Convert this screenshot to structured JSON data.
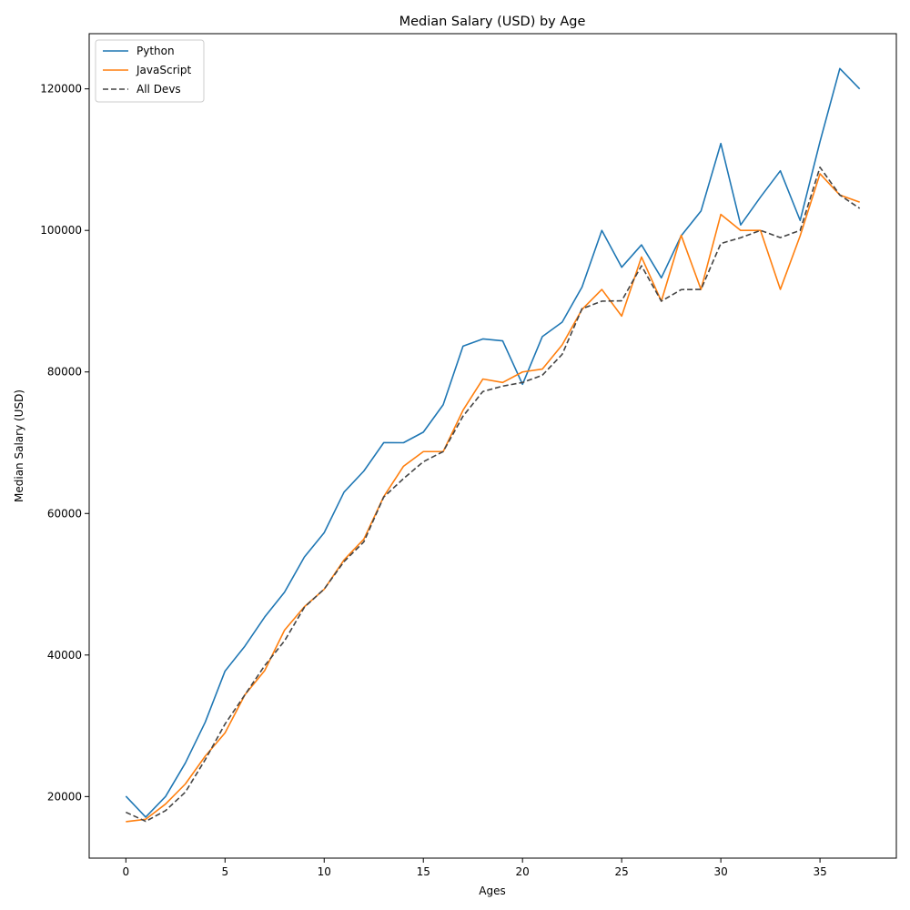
{
  "chart_data": {
    "type": "line",
    "title": "Median Salary (USD) by Age",
    "xlabel": "Ages",
    "ylabel": "Median Salary (USD)",
    "x": [
      0,
      1,
      2,
      3,
      4,
      5,
      6,
      7,
      8,
      9,
      10,
      11,
      12,
      13,
      14,
      15,
      16,
      17,
      18,
      19,
      20,
      21,
      22,
      23,
      24,
      25,
      26,
      27,
      28,
      29,
      30,
      31,
      32,
      33,
      34,
      35,
      36,
      37
    ],
    "xlim": [
      -1.85,
      38.85
    ],
    "ylim": [
      11300,
      127800
    ],
    "xticks": [
      0,
      5,
      10,
      15,
      20,
      25,
      30,
      35
    ],
    "yticks": [
      20000,
      40000,
      60000,
      80000,
      100000,
      120000
    ],
    "legend_position": "upper-left",
    "grid": false,
    "series": [
      {
        "name": "Python",
        "color": "#1f77b4",
        "style": "solid",
        "values": [
          20046,
          17100,
          20000,
          24744,
          30500,
          37732,
          41247,
          45372,
          48876,
          53850,
          57287,
          63016,
          65998,
          70003,
          70000,
          71496,
          75370,
          83640,
          84666,
          84392,
          78254,
          85000,
          87038,
          91991,
          100000,
          94796,
          97962,
          93302,
          99240,
          102736,
          112285,
          100771,
          104708,
          108423,
          101407,
          112542,
          122870,
          120000
        ]
      },
      {
        "name": "JavaScript",
        "color": "#ff7f0e",
        "style": "solid",
        "values": [
          16446,
          16791,
          18942,
          21780,
          25704,
          29000,
          34372,
          37810,
          43515,
          46823,
          49293,
          53437,
          56373,
          62375,
          66674,
          68745,
          68746,
          74583,
          79000,
          78508,
          79996,
          80403,
          83820,
          88833,
          91660,
          87892,
          96243,
          90000,
          99313,
          91660,
          102264,
          100000,
          100000,
          91660,
          99240,
          108000,
          105000,
          104000
        ]
      },
      {
        "name": "All Devs",
        "color": "#444444",
        "style": "dashed",
        "values": [
          17784,
          16500,
          18012,
          20628,
          25206,
          30252,
          34368,
          38496,
          42000,
          46752,
          49320,
          53200,
          56000,
          62316,
          64928,
          67317,
          68748,
          73752,
          77232,
          78000,
          78508,
          79536,
          82488,
          88935,
          90000,
          90056,
          95000,
          90000,
          91633,
          91660,
          98150,
          98964,
          100000,
          98988,
          100000,
          108923,
          105000,
          103117
        ]
      }
    ]
  }
}
